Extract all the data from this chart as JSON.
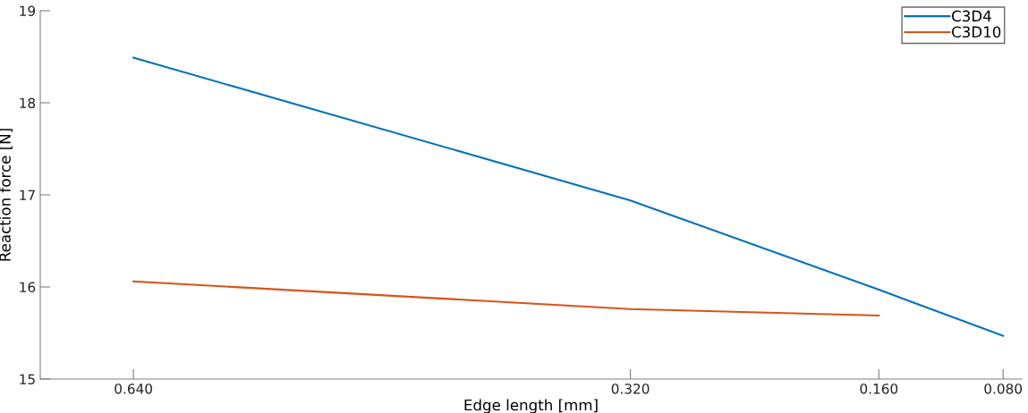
{
  "chart_data": {
    "type": "line",
    "xlabel": "Edge length [mm]",
    "ylabel": "Reaction force [N]",
    "x": [
      0.64,
      0.32,
      0.16,
      0.08
    ],
    "series": [
      {
        "name": "C3D4",
        "color": "#0072bd",
        "values": [
          18.49,
          16.94,
          15.97,
          15.47
        ]
      },
      {
        "name": "C3D10",
        "color": "#d95319",
        "x": [
          0.64,
          0.32,
          0.16
        ],
        "values": [
          16.06,
          15.76,
          15.69
        ]
      }
    ],
    "xlim": [
      0.7,
      0.068
    ],
    "xticks": [
      {
        "value": 0.64,
        "label": "0.640"
      },
      {
        "value": 0.32,
        "label": "0.320"
      },
      {
        "value": 0.16,
        "label": "0.160"
      },
      {
        "value": 0.08,
        "label": "0.080"
      }
    ],
    "ylim": [
      15,
      19
    ],
    "yticks": [
      15,
      16,
      17,
      18,
      19
    ],
    "grid": false,
    "legend": "top right",
    "marker": "none",
    "line_style": "solid"
  }
}
